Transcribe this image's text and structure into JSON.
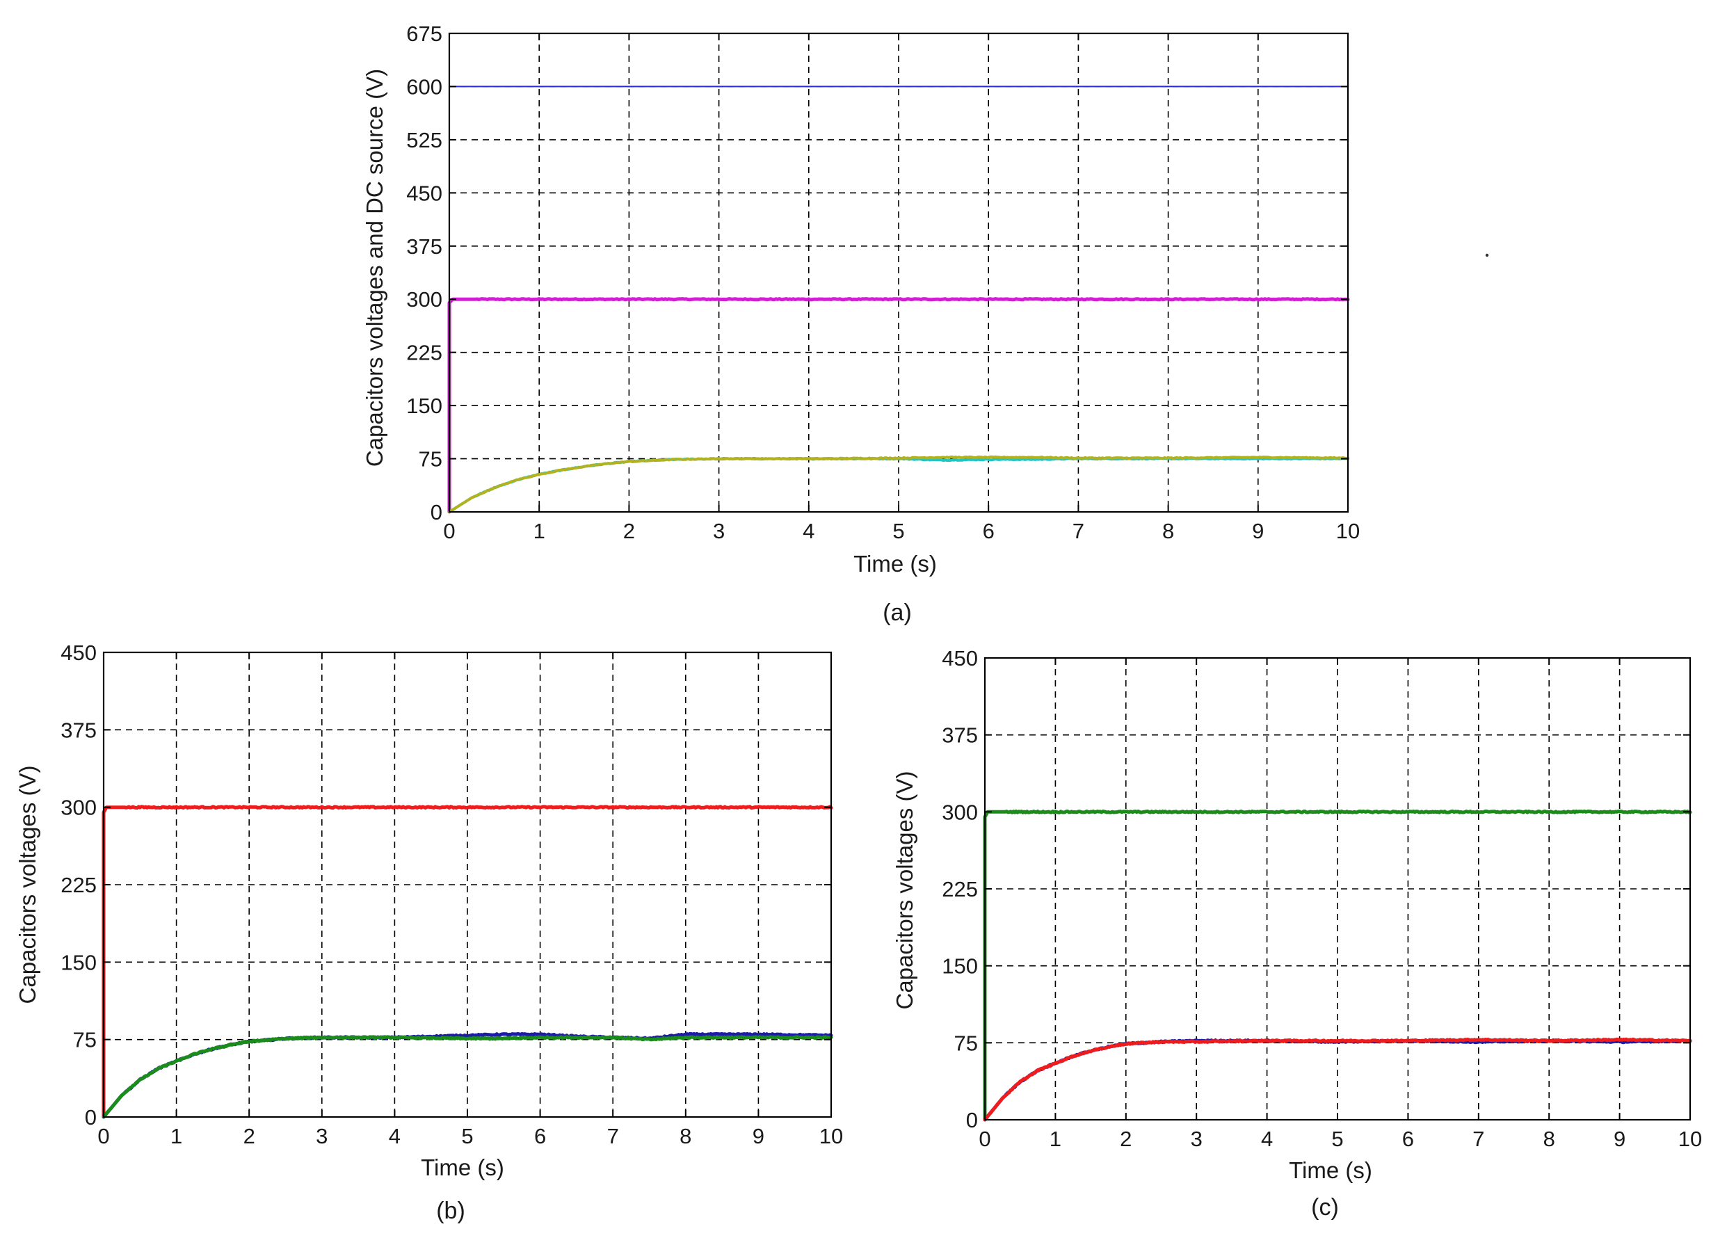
{
  "chart_data": [
    {
      "id": "a",
      "type": "line",
      "caption": "(a)",
      "xlabel": "Time (s)",
      "ylabel": "Capacitors voltages and DC source (V)",
      "xlim": [
        0,
        10
      ],
      "ylim": [
        0,
        675
      ],
      "xticks": [
        0,
        1,
        2,
        3,
        4,
        5,
        6,
        7,
        8,
        9,
        10
      ],
      "yticks": [
        0,
        75,
        150,
        225,
        300,
        375,
        450,
        525,
        600,
        675
      ],
      "grid": true,
      "legend": "none",
      "series": [
        {
          "color": "#2a2ad8",
          "width": 2,
          "x": [
            0,
            10
          ],
          "y": [
            600,
            600
          ]
        },
        {
          "color": "#d21ed2",
          "width": 5,
          "x": [
            0,
            0.005,
            0.02,
            1,
            2,
            3,
            4,
            5,
            6,
            7,
            8,
            9,
            10
          ],
          "y": [
            0,
            295,
            300,
            300,
            300,
            300,
            300,
            300,
            300,
            300,
            300,
            300,
            300
          ]
        },
        {
          "color": "#22c4c4",
          "width": 4,
          "x": [
            0,
            0.25,
            0.5,
            0.75,
            1,
            1.25,
            1.5,
            1.75,
            2,
            2.5,
            3,
            4,
            5,
            5.5,
            6,
            6.5,
            7,
            8,
            9,
            10
          ],
          "y": [
            0,
            20,
            34,
            45,
            53,
            59,
            64,
            68,
            71,
            74,
            75,
            75,
            75,
            73,
            74,
            74,
            75,
            75,
            75,
            75
          ]
        },
        {
          "color": "#b2b21e",
          "width": 4,
          "x": [
            0,
            0.25,
            0.5,
            0.75,
            1,
            1.25,
            1.5,
            1.75,
            2,
            2.5,
            3,
            4,
            5,
            5.5,
            6,
            6.5,
            7,
            8,
            9,
            10
          ],
          "y": [
            0,
            20,
            34,
            45,
            53,
            59,
            64,
            68,
            71,
            74,
            75,
            75,
            76,
            77,
            77,
            77,
            76,
            76,
            77,
            76
          ]
        }
      ]
    },
    {
      "id": "b",
      "type": "line",
      "caption": "(b)",
      "xlabel": "Time (s)",
      "ylabel": "Capacitors voltages (V)",
      "xlim": [
        0,
        10
      ],
      "ylim": [
        0,
        450
      ],
      "xticks": [
        0,
        1,
        2,
        3,
        4,
        5,
        6,
        7,
        8,
        9,
        10
      ],
      "yticks": [
        0,
        75,
        150,
        225,
        300,
        375,
        450
      ],
      "grid": true,
      "legend": "none",
      "series": [
        {
          "color": "#ee1c1c",
          "width": 5,
          "x": [
            0,
            0.005,
            0.02,
            1,
            2,
            3,
            4,
            5,
            6,
            7,
            8,
            9,
            10
          ],
          "y": [
            0,
            295,
            300,
            300,
            300,
            300,
            300,
            300,
            300,
            300,
            300,
            300,
            300
          ]
        },
        {
          "color": "#1c1ca8",
          "width": 5,
          "x": [
            0,
            0.25,
            0.5,
            0.75,
            1,
            1.25,
            1.5,
            1.75,
            2,
            2.5,
            3,
            4,
            5,
            5.5,
            6,
            6.5,
            7,
            7.5,
            8,
            9,
            10
          ],
          "y": [
            0,
            21,
            36,
            47,
            54,
            61,
            66,
            70,
            73,
            76,
            77,
            77,
            79,
            80,
            80,
            78,
            77,
            76,
            80,
            80,
            79
          ]
        },
        {
          "color": "#1a8c1a",
          "width": 5,
          "x": [
            0,
            0.25,
            0.5,
            0.75,
            1,
            1.25,
            1.5,
            1.75,
            2,
            2.5,
            3,
            4,
            5,
            5.5,
            6,
            6.5,
            7,
            7.5,
            8,
            9,
            10
          ],
          "y": [
            0,
            21,
            36,
            47,
            54,
            61,
            66,
            70,
            73,
            76,
            77,
            77,
            76,
            76,
            77,
            77,
            77,
            75,
            77,
            77,
            77
          ]
        }
      ]
    },
    {
      "id": "c",
      "type": "line",
      "caption": "(c)",
      "xlabel": "Time (s)",
      "ylabel": "Capacitors voltages (V)",
      "xlim": [
        0,
        10
      ],
      "ylim": [
        0,
        450
      ],
      "xticks": [
        0,
        1,
        2,
        3,
        4,
        5,
        6,
        7,
        8,
        9,
        10
      ],
      "yticks": [
        0,
        75,
        150,
        225,
        300,
        375,
        450
      ],
      "grid": true,
      "legend": "none",
      "series": [
        {
          "color": "#1a8c1a",
          "width": 5,
          "x": [
            0,
            0.005,
            0.02,
            1,
            2,
            3,
            4,
            5,
            6,
            7,
            8,
            9,
            10
          ],
          "y": [
            0,
            295,
            300,
            300,
            300,
            300,
            300,
            300,
            300,
            300,
            300,
            300,
            300
          ]
        },
        {
          "color": "#1c1ca8",
          "width": 5,
          "x": [
            0,
            0.25,
            0.5,
            0.75,
            1,
            1.25,
            1.5,
            1.75,
            2,
            2.5,
            3,
            4,
            5,
            6,
            7,
            8,
            9,
            10
          ],
          "y": [
            0,
            21,
            37,
            48,
            55,
            62,
            67,
            71,
            74,
            76,
            77,
            77,
            76,
            77,
            76,
            77,
            76,
            77
          ]
        },
        {
          "color": "#ee1c1c",
          "width": 5,
          "x": [
            0,
            0.25,
            0.5,
            0.75,
            1,
            1.25,
            1.5,
            1.75,
            2,
            2.5,
            3,
            4,
            5,
            6,
            7,
            8,
            9,
            10
          ],
          "y": [
            0,
            21,
            37,
            48,
            55,
            62,
            67,
            71,
            74,
            76,
            76,
            77,
            77,
            77,
            78,
            77,
            78,
            77
          ]
        }
      ]
    }
  ]
}
